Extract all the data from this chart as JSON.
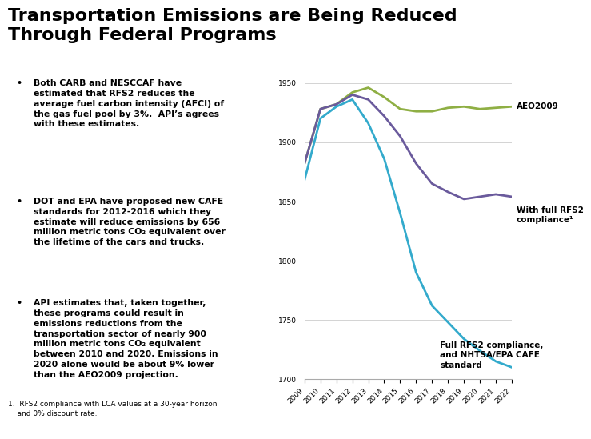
{
  "title": "Transportation Emissions are Being Reduced\nThrough Federal Programs",
  "title_fontsize": 16,
  "title_fontweight": "bold",
  "background_color": "#ffffff",
  "bullet_points": [
    "Both CARB and NESCCAF have\nestimated that RFS2 reduces the\naverage fuel carbon intensity (AFCI) of\nthe gas fuel pool by 3%.  API’s agrees\nwith these estimates.",
    "DOT and EPA have proposed new CAFE\nstandards for 2012-2016 which they\nestimate will reduce emissions by 656\nmillion metric tons CO₂ equivalent over\nthe lifetime of the cars and trucks.",
    "API estimates that, taken together,\nthese programs could result in\nemissions reductions from the\ntransportation sector of nearly 900\nmillion metric tons CO₂ equivalent\nbetween 2010 and 2020. Emissions in\n2020 alone would be about 9% lower\nthan the AEO2009 projection."
  ],
  "footnote": "1.  RFS2 compliance with LCA values at a 30-year horizon\n    and 0% discount rate.",
  "x_years": [
    2009,
    2010,
    2011,
    2012,
    2013,
    2014,
    2015,
    2016,
    2017,
    2018,
    2019,
    2020,
    2021,
    2022
  ],
  "aeo2009": [
    1882,
    1928,
    1932,
    1942,
    1946,
    1938,
    1928,
    1926,
    1926,
    1929,
    1930,
    1928,
    1929,
    1930
  ],
  "rfs2": [
    1882,
    1928,
    1932,
    1940,
    1936,
    1922,
    1905,
    1882,
    1865,
    1858,
    1852,
    1854,
    1856,
    1854
  ],
  "rfs2_cafe": [
    1868,
    1920,
    1930,
    1936,
    1916,
    1886,
    1840,
    1790,
    1762,
    1748,
    1734,
    1724,
    1715,
    1710
  ],
  "aeo2009_color": "#8faf44",
  "rfs2_color": "#6a5a9c",
  "rfs2_cafe_color": "#33aacc",
  "ylim": [
    1700,
    1955
  ],
  "yticks": [
    1700,
    1750,
    1800,
    1850,
    1900,
    1950
  ],
  "chart_label_aeo": "AEO2009",
  "chart_label_rfs2": "With full RFS2\ncompliance¹",
  "chart_label_cafe": "Full RFS2 compliance,\nand NHTSA/EPA CAFE\nstandard"
}
